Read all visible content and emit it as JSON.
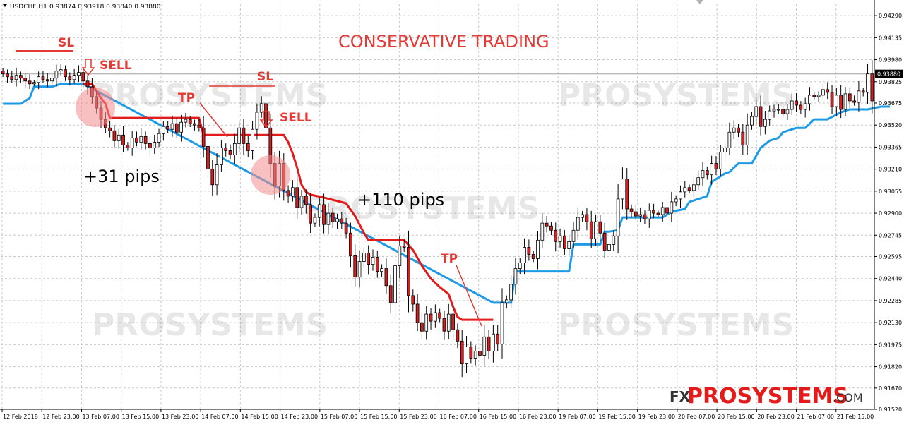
{
  "header": {
    "symbol": "USDCHF,H1",
    "ohlc": "0.93874 0.93918 0.93840 0.93880"
  },
  "colors": {
    "bull": "#ffffff",
    "bear": "#d42020",
    "wick": "#000000",
    "sell_stop": "#e31b1b",
    "buy_stop": "#1e9be6",
    "annotation": "#e53935",
    "grid": "#c8c8c8",
    "axis": "#000000"
  },
  "annotations": {
    "title": "CONSERVATIVE TRADING",
    "sl": "SL",
    "sell": "SELL",
    "tp": "TP",
    "gain1": "+31 pips",
    "gain2": "+110 pips"
  },
  "watermark": {
    "fx": "FX",
    "brand": "PROSYSTEMS",
    "dot_com": ".COM",
    "faint": "PROSYSTEMS"
  },
  "chart_data": {
    "type": "candlestick",
    "symbol": "USDCHF,H1",
    "ylim": [
      0.9152,
      0.9437
    ],
    "y_ticks": [
      "0.94290",
      "0.94135",
      "0.93980",
      "0.93825",
      "0.93675",
      "0.93520",
      "0.93365",
      "0.93210",
      "0.93055",
      "0.92900",
      "0.92745",
      "0.92595",
      "0.92440",
      "0.92285",
      "0.92130",
      "0.91975",
      "0.91820",
      "0.91670",
      "0.91520"
    ],
    "current_price": "0.93880",
    "x_ticks": [
      "12 Feb 2018",
      "12 Feb 23:00",
      "13 Feb 07:00",
      "13 Feb 15:00",
      "13 Feb 23:00",
      "14 Feb 07:00",
      "14 Feb 15:00",
      "14 Feb 23:00",
      "15 Feb 07:00",
      "15 Feb 15:00",
      "15 Feb 23:00",
      "16 Feb 07:00",
      "16 Feb 15:00",
      "16 Feb 23:00",
      "19 Feb 07:00",
      "19 Feb 15:00",
      "19 Feb 23:00",
      "20 Feb 07:00",
      "20 Feb 15:00",
      "20 Feb 23:00",
      "21 Feb 07:00",
      "21 Feb 15:00"
    ],
    "close": [
      0.9388,
      0.9386,
      0.9384,
      0.9387,
      0.9385,
      0.9383,
      0.9381,
      0.9382,
      0.9386,
      0.9384,
      0.9383,
      0.9385,
      0.939,
      0.9391,
      0.9386,
      0.9384,
      0.9387,
      0.9389,
      0.9383,
      0.9379,
      0.9372,
      0.9364,
      0.9356,
      0.935,
      0.9348,
      0.9341,
      0.9345,
      0.9338,
      0.9336,
      0.9343,
      0.934,
      0.9344,
      0.9339,
      0.9336,
      0.934,
      0.9346,
      0.9351,
      0.9349,
      0.9353,
      0.9347,
      0.9354,
      0.9356,
      0.9353,
      0.9352,
      0.935,
      0.9337,
      0.9321,
      0.931,
      0.9324,
      0.9336,
      0.9334,
      0.9331,
      0.9339,
      0.935,
      0.9339,
      0.9334,
      0.9349,
      0.9361,
      0.9367,
      0.935,
      0.9325,
      0.9309,
      0.9325,
      0.9306,
      0.9302,
      0.9308,
      0.9294,
      0.9302,
      0.9296,
      0.9283,
      0.9287,
      0.9296,
      0.9282,
      0.929,
      0.9284,
      0.9286,
      0.9283,
      0.9276,
      0.926,
      0.9245,
      0.9256,
      0.9262,
      0.9254,
      0.9259,
      0.9249,
      0.9251,
      0.9239,
      0.9227,
      0.9253,
      0.9267,
      0.9266,
      0.9232,
      0.9226,
      0.9213,
      0.9207,
      0.9219,
      0.9214,
      0.922,
      0.9216,
      0.9207,
      0.9219,
      0.9208,
      0.92,
      0.9184,
      0.9196,
      0.9188,
      0.9193,
      0.919,
      0.9203,
      0.9193,
      0.9205,
      0.9198,
      0.9227,
      0.9229,
      0.924,
      0.9251,
      0.9255,
      0.9266,
      0.9261,
      0.9258,
      0.9271,
      0.9283,
      0.9281,
      0.9278,
      0.927,
      0.9274,
      0.9265,
      0.927,
      0.9278,
      0.9287,
      0.9289,
      0.9284,
      0.9272,
      0.9284,
      0.9276,
      0.9264,
      0.9268,
      0.9274,
      0.93,
      0.9314,
      0.9293,
      0.9291,
      0.9288,
      0.9289,
      0.9286,
      0.9292,
      0.929,
      0.9289,
      0.9294,
      0.929,
      0.9298,
      0.93,
      0.9305,
      0.9308,
      0.9306,
      0.931,
      0.9315,
      0.932,
      0.9317,
      0.9325,
      0.9321,
      0.9333,
      0.9336,
      0.9347,
      0.935,
      0.9347,
      0.9338,
      0.9352,
      0.9358,
      0.9365,
      0.9351,
      0.9356,
      0.9362,
      0.9363,
      0.9363,
      0.936,
      0.9363,
      0.9369,
      0.9366,
      0.9363,
      0.9367,
      0.9373,
      0.9372,
      0.9373,
      0.9377,
      0.9375,
      0.9365,
      0.9373,
      0.9363,
      0.9374,
      0.9369,
      0.9368,
      0.9376,
      0.9375,
      0.9388,
      0.9369
    ],
    "sell_stop": {
      "color": "#e31b1b",
      "points": [
        [
          18,
          0.9381
        ],
        [
          20,
          0.9381
        ],
        [
          22,
          0.9371
        ],
        [
          23,
          0.9367
        ],
        [
          24,
          0.9357
        ],
        [
          34,
          0.9357
        ],
        [
          35,
          0.9357
        ],
        [
          44,
          0.9357
        ],
        [
          45,
          0.9345
        ],
        [
          52,
          0.9345
        ],
        [
          53,
          0.9345
        ],
        [
          63,
          0.9345
        ],
        [
          64,
          0.934
        ],
        [
          65,
          0.9332
        ],
        [
          66,
          0.9322
        ],
        [
          67,
          0.931
        ],
        [
          68,
          0.9305
        ],
        [
          69,
          0.9303
        ],
        [
          72,
          0.9301
        ],
        [
          77,
          0.9297
        ],
        [
          79,
          0.9288
        ],
        [
          81,
          0.9276
        ],
        [
          82,
          0.9271
        ],
        [
          90,
          0.9271
        ],
        [
          92,
          0.9264
        ],
        [
          94,
          0.9253
        ],
        [
          96,
          0.9244
        ],
        [
          98,
          0.9238
        ],
        [
          100,
          0.9233
        ],
        [
          101,
          0.9224
        ],
        [
          102,
          0.9217
        ],
        [
          103,
          0.9215
        ],
        [
          106,
          0.9215
        ],
        [
          110,
          0.9215
        ]
      ]
    },
    "buy_stop": {
      "color": "#1e9be6",
      "points": [
        [
          0,
          0.9367
        ],
        [
          4,
          0.9367
        ],
        [
          6,
          0.9371
        ],
        [
          7,
          0.9379
        ],
        [
          11,
          0.9379
        ],
        [
          13,
          0.9381
        ],
        [
          18,
          0.9381
        ],
        [
          110,
          0.9227
        ],
        [
          114,
          0.9227
        ],
        [
          115,
          0.9249
        ],
        [
          127,
          0.9249
        ],
        [
          128,
          0.9268
        ],
        [
          134,
          0.9268
        ],
        [
          135,
          0.9277
        ],
        [
          136,
          0.9277
        ],
        [
          138,
          0.9278
        ],
        [
          139,
          0.9287
        ],
        [
          148,
          0.9287
        ],
        [
          150,
          0.9291
        ],
        [
          153,
          0.9293
        ],
        [
          154,
          0.9298
        ],
        [
          156,
          0.93
        ],
        [
          158,
          0.9302
        ],
        [
          159,
          0.9312
        ],
        [
          162,
          0.9318
        ],
        [
          163,
          0.9319
        ],
        [
          165,
          0.9325
        ],
        [
          168,
          0.9325
        ],
        [
          170,
          0.9336
        ],
        [
          172,
          0.9341
        ],
        [
          174,
          0.9343
        ],
        [
          175,
          0.9347
        ],
        [
          178,
          0.935
        ],
        [
          180,
          0.935
        ],
        [
          182,
          0.9356
        ],
        [
          185,
          0.9356
        ],
        [
          188,
          0.9361
        ],
        [
          190,
          0.9363
        ],
        [
          194,
          0.9363
        ],
        [
          197,
          0.9365
        ],
        [
          199,
          0.9365
        ]
      ]
    }
  }
}
